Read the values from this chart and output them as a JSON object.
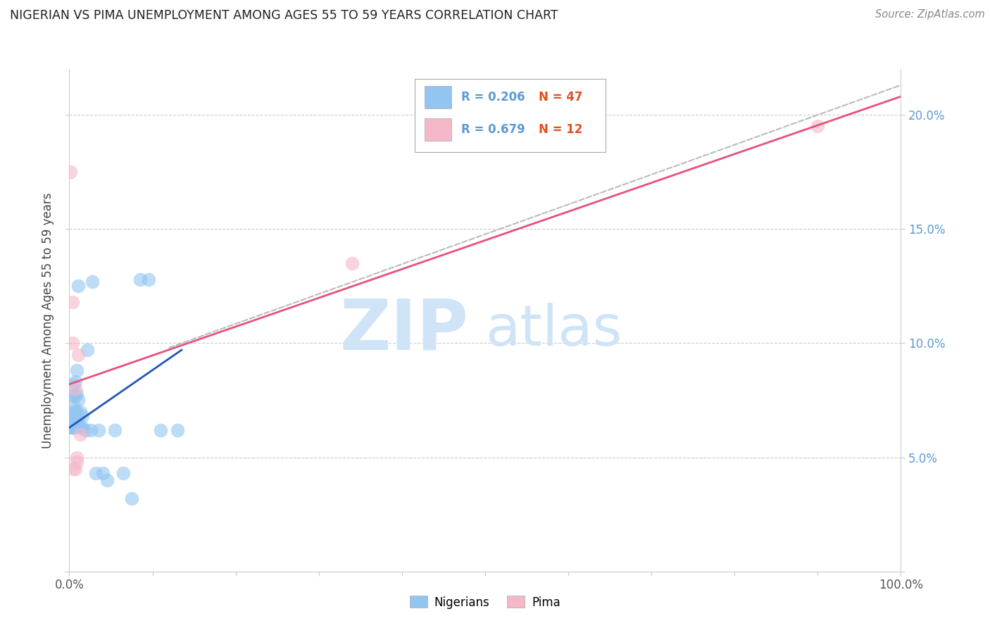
{
  "title": "NIGERIAN VS PIMA UNEMPLOYMENT AMONG AGES 55 TO 59 YEARS CORRELATION CHART",
  "source": "Source: ZipAtlas.com",
  "ylabel": "Unemployment Among Ages 55 to 59 years",
  "xlim": [
    0,
    1.0
  ],
  "ylim": [
    0,
    0.22
  ],
  "xticks": [
    0.0,
    0.1,
    0.2,
    0.3,
    0.4,
    0.5,
    0.6,
    0.7,
    0.8,
    0.9,
    1.0
  ],
  "xticklabels": [
    "0.0%",
    "",
    "",
    "",
    "",
    "",
    "",
    "",
    "",
    "",
    "100.0%"
  ],
  "yticks": [
    0.0,
    0.05,
    0.1,
    0.15,
    0.2
  ],
  "yticklabels": [
    "",
    "5.0%",
    "10.0%",
    "15.0%",
    "20.0%"
  ],
  "blue_color": "#92C5F0",
  "pink_color": "#F5B8C8",
  "blue_line_color": "#2255BB",
  "pink_line_color": "#E8507A",
  "diag_line_color": "#BBBBBB",
  "watermark_color": "#D0E4F7",
  "background_color": "#FFFFFF",
  "grid_color": "#CCCCCC",
  "nigerians_x": [
    0.003,
    0.003,
    0.003,
    0.003,
    0.003,
    0.003,
    0.004,
    0.004,
    0.004,
    0.005,
    0.005,
    0.005,
    0.005,
    0.005,
    0.005,
    0.005,
    0.007,
    0.007,
    0.007,
    0.007,
    0.007,
    0.009,
    0.009,
    0.009,
    0.009,
    0.011,
    0.011,
    0.011,
    0.013,
    0.013,
    0.016,
    0.016,
    0.019,
    0.022,
    0.026,
    0.028,
    0.032,
    0.035,
    0.04,
    0.045,
    0.055,
    0.065,
    0.075,
    0.085,
    0.095,
    0.11,
    0.13
  ],
  "nigerians_y": [
    0.063,
    0.063,
    0.065,
    0.066,
    0.067,
    0.068,
    0.063,
    0.065,
    0.067,
    0.063,
    0.065,
    0.067,
    0.07,
    0.073,
    0.077,
    0.082,
    0.063,
    0.066,
    0.07,
    0.077,
    0.083,
    0.065,
    0.07,
    0.078,
    0.088,
    0.067,
    0.075,
    0.125,
    0.063,
    0.07,
    0.063,
    0.068,
    0.062,
    0.097,
    0.062,
    0.127,
    0.043,
    0.062,
    0.043,
    0.04,
    0.062,
    0.043,
    0.032,
    0.128,
    0.128,
    0.062,
    0.062
  ],
  "pima_x": [
    0.001,
    0.004,
    0.004,
    0.005,
    0.007,
    0.007,
    0.009,
    0.009,
    0.011,
    0.013,
    0.34,
    0.9
  ],
  "pima_y": [
    0.175,
    0.118,
    0.1,
    0.045,
    0.045,
    0.08,
    0.048,
    0.05,
    0.095,
    0.06,
    0.135,
    0.195
  ],
  "blue_line_x": [
    0.0,
    0.135
  ],
  "blue_line_y": [
    0.063,
    0.097
  ],
  "pink_line_x": [
    0.0,
    1.0
  ],
  "pink_line_y": [
    0.082,
    0.208
  ],
  "diag_line_x": [
    0.12,
    1.0
  ],
  "diag_line_y": [
    0.098,
    0.213
  ]
}
